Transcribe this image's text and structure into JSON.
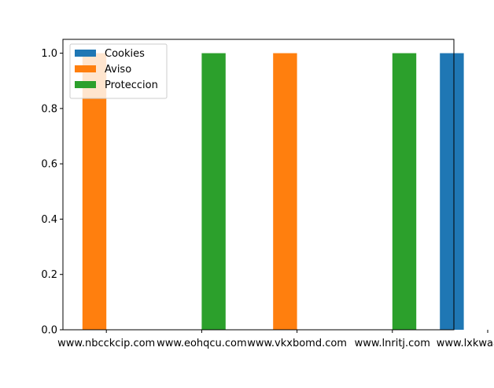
{
  "chart_data": {
    "type": "bar",
    "categories": [
      "www.nbcckcip.com",
      "www.eohqcu.com",
      "www.vkxbomd.com",
      "www.lnritj.com",
      "www.lxkwaajoz.com"
    ],
    "series": [
      {
        "name": "Cookies",
        "color": "#1f77b4",
        "values": [
          0,
          0,
          0,
          0,
          1
        ]
      },
      {
        "name": "Aviso",
        "color": "#ff7f0e",
        "values": [
          1,
          0,
          1,
          0,
          0
        ]
      },
      {
        "name": "Proteccion",
        "color": "#2ca02c",
        "values": [
          0,
          1,
          0,
          1,
          0
        ]
      }
    ],
    "yticks": [
      "0.0",
      "0.2",
      "0.4",
      "0.6",
      "0.8",
      "1.0"
    ],
    "ylim": [
      0,
      1.05
    ],
    "legend_position": "top-left",
    "grid": false
  }
}
